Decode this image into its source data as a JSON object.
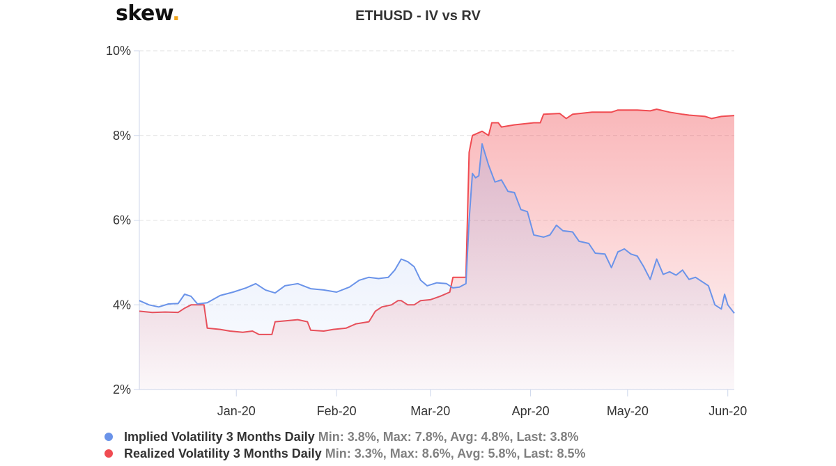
{
  "logo": {
    "text": "skew",
    "dot": "."
  },
  "chart_data": {
    "type": "area",
    "title": "ETHUSD - IV vs RV",
    "xlabel": "",
    "ylabel": "",
    "x_range": [
      "2019-12-02",
      "2020-06-03"
    ],
    "ylim": [
      2,
      10
    ],
    "y_ticks": [
      2,
      4,
      6,
      8,
      10
    ],
    "y_tick_labels": [
      "2%",
      "4%",
      "6%",
      "8%",
      "10%"
    ],
    "x_ticks": [
      {
        "date": "2020-01-01",
        "label": "Jan-20"
      },
      {
        "date": "2020-02-01",
        "label": "Feb-20"
      },
      {
        "date": "2020-03-01",
        "label": "Mar-20"
      },
      {
        "date": "2020-04-01",
        "label": "Apr-20"
      },
      {
        "date": "2020-05-01",
        "label": "May-20"
      },
      {
        "date": "2020-06-01",
        "label": "Jun-20"
      }
    ],
    "grid": "horizontal dashed",
    "legend_position": "bottom-left",
    "series": [
      {
        "name": "Implied Volatility 3 Months Daily",
        "stats": "Min: 3.8%, Max: 7.8%, Avg: 4.8%, Last: 3.8%",
        "color": "#6a93e9",
        "points": [
          [
            "2019-12-02",
            4.1
          ],
          [
            "2019-12-05",
            4.0
          ],
          [
            "2019-12-08",
            3.95
          ],
          [
            "2019-12-11",
            4.02
          ],
          [
            "2019-12-14",
            4.03
          ],
          [
            "2019-12-16",
            4.25
          ],
          [
            "2019-12-18",
            4.2
          ],
          [
            "2019-12-20",
            4.02
          ],
          [
            "2019-12-23",
            4.05
          ],
          [
            "2019-12-27",
            4.22
          ],
          [
            "2019-12-31",
            4.3
          ],
          [
            "2020-01-04",
            4.4
          ],
          [
            "2020-01-07",
            4.5
          ],
          [
            "2020-01-10",
            4.35
          ],
          [
            "2020-01-13",
            4.28
          ],
          [
            "2020-01-16",
            4.45
          ],
          [
            "2020-01-20",
            4.5
          ],
          [
            "2020-01-24",
            4.38
          ],
          [
            "2020-01-28",
            4.35
          ],
          [
            "2020-02-01",
            4.3
          ],
          [
            "2020-02-05",
            4.42
          ],
          [
            "2020-02-08",
            4.58
          ],
          [
            "2020-02-11",
            4.65
          ],
          [
            "2020-02-14",
            4.62
          ],
          [
            "2020-02-17",
            4.65
          ],
          [
            "2020-02-19",
            4.82
          ],
          [
            "2020-02-21",
            5.08
          ],
          [
            "2020-02-23",
            5.02
          ],
          [
            "2020-02-25",
            4.9
          ],
          [
            "2020-02-27",
            4.58
          ],
          [
            "2020-02-29",
            4.45
          ],
          [
            "2020-03-03",
            4.52
          ],
          [
            "2020-03-06",
            4.5
          ],
          [
            "2020-03-08",
            4.4
          ],
          [
            "2020-03-10",
            4.42
          ],
          [
            "2020-03-12",
            4.5
          ],
          [
            "2020-03-13",
            6.0
          ],
          [
            "2020-03-14",
            7.1
          ],
          [
            "2020-03-15",
            7.0
          ],
          [
            "2020-03-16",
            7.05
          ],
          [
            "2020-03-17",
            7.8
          ],
          [
            "2020-03-19",
            7.3
          ],
          [
            "2020-03-21",
            6.9
          ],
          [
            "2020-03-23",
            6.95
          ],
          [
            "2020-03-25",
            6.68
          ],
          [
            "2020-03-27",
            6.65
          ],
          [
            "2020-03-29",
            6.25
          ],
          [
            "2020-03-31",
            6.2
          ],
          [
            "2020-04-02",
            5.65
          ],
          [
            "2020-04-05",
            5.6
          ],
          [
            "2020-04-07",
            5.65
          ],
          [
            "2020-04-09",
            5.88
          ],
          [
            "2020-04-11",
            5.75
          ],
          [
            "2020-04-14",
            5.72
          ],
          [
            "2020-04-16",
            5.5
          ],
          [
            "2020-04-19",
            5.45
          ],
          [
            "2020-04-21",
            5.22
          ],
          [
            "2020-04-24",
            5.2
          ],
          [
            "2020-04-26",
            4.88
          ],
          [
            "2020-04-28",
            5.25
          ],
          [
            "2020-04-30",
            5.32
          ],
          [
            "2020-05-02",
            5.2
          ],
          [
            "2020-05-04",
            5.15
          ],
          [
            "2020-05-06",
            4.9
          ],
          [
            "2020-05-08",
            4.6
          ],
          [
            "2020-05-10",
            5.08
          ],
          [
            "2020-05-12",
            4.72
          ],
          [
            "2020-05-14",
            4.78
          ],
          [
            "2020-05-16",
            4.7
          ],
          [
            "2020-05-18",
            4.82
          ],
          [
            "2020-05-20",
            4.6
          ],
          [
            "2020-05-22",
            4.65
          ],
          [
            "2020-05-24",
            4.55
          ],
          [
            "2020-05-26",
            4.45
          ],
          [
            "2020-05-28",
            4.0
          ],
          [
            "2020-05-30",
            3.9
          ],
          [
            "2020-05-31",
            4.25
          ],
          [
            "2020-06-01",
            4.0
          ],
          [
            "2020-06-03",
            3.8
          ]
        ]
      },
      {
        "name": "Realized Volatility 3 Months Daily",
        "stats": "Min: 3.3%, Max: 8.6%, Avg: 5.8%, Last: 8.5%",
        "color": "#f04b51",
        "points": [
          [
            "2019-12-02",
            3.85
          ],
          [
            "2019-12-06",
            3.82
          ],
          [
            "2019-12-10",
            3.83
          ],
          [
            "2019-12-14",
            3.82
          ],
          [
            "2019-12-16",
            3.92
          ],
          [
            "2019-12-18",
            4.0
          ],
          [
            "2019-12-22",
            4.0
          ],
          [
            "2019-12-23",
            3.45
          ],
          [
            "2019-12-27",
            3.42
          ],
          [
            "2019-12-30",
            3.38
          ],
          [
            "2020-01-03",
            3.35
          ],
          [
            "2020-01-06",
            3.38
          ],
          [
            "2020-01-08",
            3.3
          ],
          [
            "2020-01-12",
            3.3
          ],
          [
            "2020-01-13",
            3.6
          ],
          [
            "2020-01-16",
            3.62
          ],
          [
            "2020-01-20",
            3.65
          ],
          [
            "2020-01-23",
            3.6
          ],
          [
            "2020-01-24",
            3.4
          ],
          [
            "2020-01-28",
            3.38
          ],
          [
            "2020-01-31",
            3.42
          ],
          [
            "2020-02-04",
            3.45
          ],
          [
            "2020-02-07",
            3.55
          ],
          [
            "2020-02-11",
            3.6
          ],
          [
            "2020-02-13",
            3.85
          ],
          [
            "2020-02-15",
            3.95
          ],
          [
            "2020-02-18",
            4.0
          ],
          [
            "2020-02-20",
            4.1
          ],
          [
            "2020-02-21",
            4.1
          ],
          [
            "2020-02-23",
            4.0
          ],
          [
            "2020-02-25",
            4.0
          ],
          [
            "2020-02-27",
            4.1
          ],
          [
            "2020-03-01",
            4.12
          ],
          [
            "2020-03-04",
            4.2
          ],
          [
            "2020-03-07",
            4.3
          ],
          [
            "2020-03-08",
            4.65
          ],
          [
            "2020-03-12",
            4.65
          ],
          [
            "2020-03-13",
            7.6
          ],
          [
            "2020-03-14",
            8.0
          ],
          [
            "2020-03-17",
            8.1
          ],
          [
            "2020-03-19",
            8.0
          ],
          [
            "2020-03-20",
            8.3
          ],
          [
            "2020-03-22",
            8.3
          ],
          [
            "2020-03-23",
            8.2
          ],
          [
            "2020-03-27",
            8.25
          ],
          [
            "2020-04-02",
            8.3
          ],
          [
            "2020-04-04",
            8.3
          ],
          [
            "2020-04-05",
            8.5
          ],
          [
            "2020-04-10",
            8.52
          ],
          [
            "2020-04-12",
            8.4
          ],
          [
            "2020-04-14",
            8.5
          ],
          [
            "2020-04-20",
            8.55
          ],
          [
            "2020-04-26",
            8.55
          ],
          [
            "2020-04-28",
            8.6
          ],
          [
            "2020-05-04",
            8.6
          ],
          [
            "2020-05-08",
            8.58
          ],
          [
            "2020-05-10",
            8.62
          ],
          [
            "2020-05-14",
            8.55
          ],
          [
            "2020-05-18",
            8.5
          ],
          [
            "2020-05-20",
            8.48
          ],
          [
            "2020-05-25",
            8.45
          ],
          [
            "2020-05-27",
            8.4
          ],
          [
            "2020-05-30",
            8.45
          ],
          [
            "2020-06-03",
            8.47
          ]
        ]
      }
    ]
  }
}
